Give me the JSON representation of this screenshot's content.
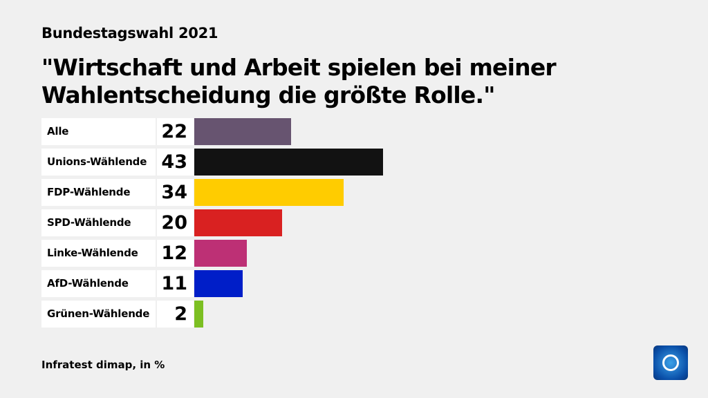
{
  "supertitle": "Bundestagswahl 2021",
  "chart_data": {
    "type": "bar",
    "orientation": "horizontal",
    "title": "\"Wirtschaft und Arbeit spielen bei meiner Wahlentscheidung die größte Rolle.\"",
    "categories": [
      "Alle",
      "Unions-Wählende",
      "FDP-Wählende",
      "SPD-Wählende",
      "Linke-Wählende",
      "AfD-Wählende",
      "Grünen-Wählende"
    ],
    "values": [
      22,
      43,
      34,
      20,
      12,
      11,
      2
    ],
    "colors": [
      "#675470",
      "#121212",
      "#ffcc00",
      "#d92121",
      "#bd3075",
      "#001ec8",
      "#7cbf22"
    ],
    "xlim": [
      0,
      43
    ],
    "grid": false
  },
  "source": "Infratest dimap, in %",
  "logo": "tagesschau"
}
